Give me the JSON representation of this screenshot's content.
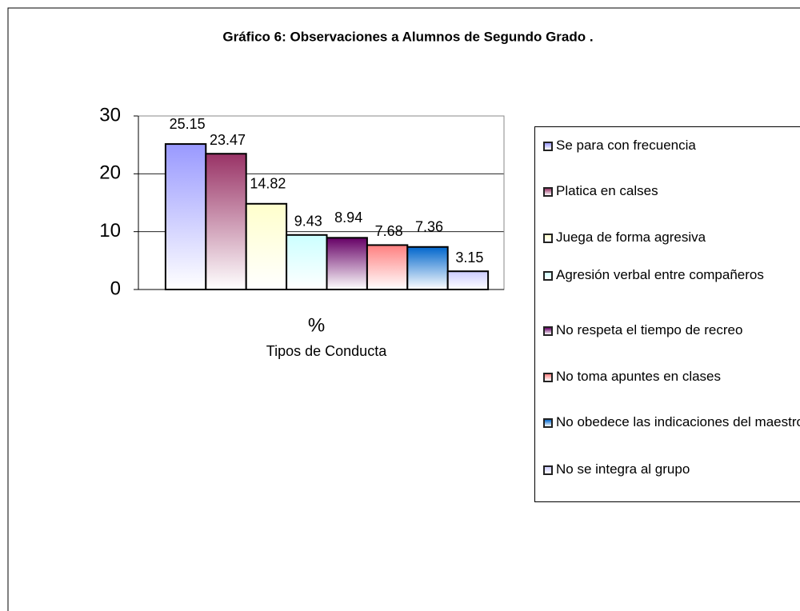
{
  "chart_data": {
    "type": "bar",
    "title": "Gráfico 6: Observaciones a Alumnos de Segundo Grado .",
    "xlabel": "Tipos de Conducta",
    "categories": [
      "%"
    ],
    "series": [
      {
        "name": "Se para con frecuencia",
        "color": "#9999ff",
        "values": [
          25.15
        ]
      },
      {
        "name": "Platica en calses",
        "color": "#993366",
        "values": [
          23.47
        ]
      },
      {
        "name": "Juega de forma agresiva",
        "color": "#ffffcc",
        "values": [
          14.82
        ]
      },
      {
        "name": "Agresión verbal entre compañeros",
        "color": "#ccffff",
        "values": [
          9.43
        ]
      },
      {
        "name": "No respeta el tiempo de recreo",
        "color": "#660066",
        "values": [
          8.94
        ]
      },
      {
        "name": "No toma apuntes en clases",
        "color": "#ff8080",
        "values": [
          7.68
        ]
      },
      {
        "name": "No obedece las indicaciones del maestro",
        "color": "#0066cc",
        "values": [
          7.36
        ]
      },
      {
        "name": "No se integra al grupo",
        "color": "#ccccff",
        "values": [
          3.15
        ]
      }
    ],
    "ylim": [
      0,
      30
    ],
    "yticks": [
      0,
      10,
      20,
      30
    ],
    "grid": true,
    "legend": "right"
  }
}
